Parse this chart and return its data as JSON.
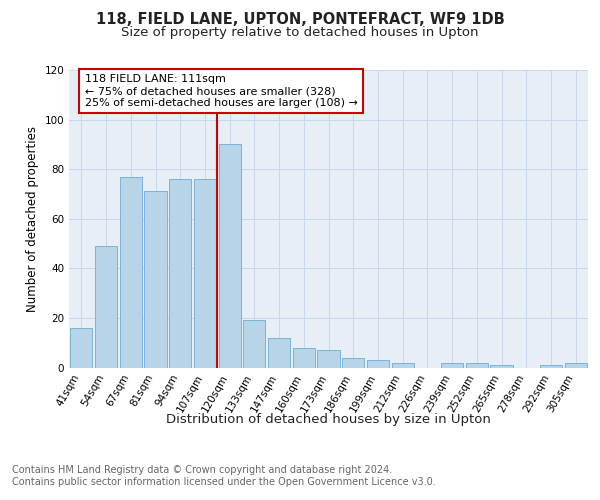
{
  "title": "118, FIELD LANE, UPTON, PONTEFRACT, WF9 1DB",
  "subtitle": "Size of property relative to detached houses in Upton",
  "xlabel": "Distribution of detached houses by size in Upton",
  "ylabel": "Number of detached properties",
  "categories": [
    "41sqm",
    "54sqm",
    "67sqm",
    "81sqm",
    "94sqm",
    "107sqm",
    "120sqm",
    "133sqm",
    "147sqm",
    "160sqm",
    "173sqm",
    "186sqm",
    "199sqm",
    "212sqm",
    "226sqm",
    "239sqm",
    "252sqm",
    "265sqm",
    "278sqm",
    "292sqm",
    "305sqm"
  ],
  "values": [
    16,
    49,
    77,
    71,
    76,
    76,
    90,
    19,
    12,
    8,
    7,
    4,
    3,
    2,
    0,
    2,
    2,
    1,
    0,
    1,
    2
  ],
  "bar_color": "#b8d4e8",
  "bar_edge_color": "#6aaed6",
  "vline_color": "#cc0000",
  "vline_x": 5.5,
  "annotation_line0": "118 FIELD LANE: 111sqm",
  "annotation_line1": "← 75% of detached houses are smaller (328)",
  "annotation_line2": "25% of semi-detached houses are larger (108) →",
  "annotation_box_facecolor": "#ffffff",
  "annotation_box_edgecolor": "#cc0000",
  "ylim": [
    0,
    120
  ],
  "yticks": [
    0,
    20,
    40,
    60,
    80,
    100,
    120
  ],
  "grid_color": "#c8d8ea",
  "background_color": "#e8eef6",
  "footer": "Contains HM Land Registry data © Crown copyright and database right 2024.\nContains public sector information licensed under the Open Government Licence v3.0.",
  "title_fontsize": 10.5,
  "subtitle_fontsize": 9.5,
  "ylabel_fontsize": 8.5,
  "xlabel_fontsize": 9.5,
  "tick_fontsize": 7.5,
  "annot_fontsize": 8,
  "footer_fontsize": 7
}
